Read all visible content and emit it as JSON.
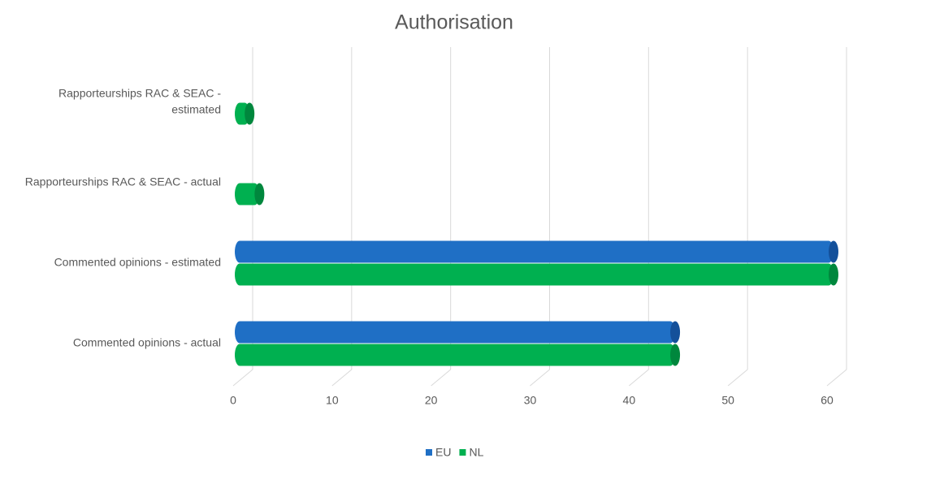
{
  "chart_data": {
    "type": "bar3d",
    "orientation": "horizontal",
    "title": "Authorisation",
    "categories": [
      "Commented opinions - actual",
      "Commented opinions - estimated",
      "Rapporteurships RAC & SEAC - actual",
      "Rapporteurships RAC & SEAC - estimated"
    ],
    "category_lines": [
      [
        "Commented opinions - actual"
      ],
      [
        "Commented opinions - estimated"
      ],
      [
        "Rapporteurships RAC & SEAC - actual"
      ],
      [
        "Rapporteurships RAC & SEAC -",
        "estimated"
      ]
    ],
    "series": [
      {
        "name": "EU",
        "color": "#1f6fc5",
        "values": [
          44,
          60,
          null,
          null
        ]
      },
      {
        "name": "NL",
        "color": "#00b050",
        "values": [
          44,
          60,
          2,
          1
        ]
      }
    ],
    "xlim": [
      0,
      60
    ],
    "xticks": [
      0,
      10,
      20,
      30,
      40,
      50,
      60
    ],
    "grid": true,
    "legend": "bottom"
  }
}
